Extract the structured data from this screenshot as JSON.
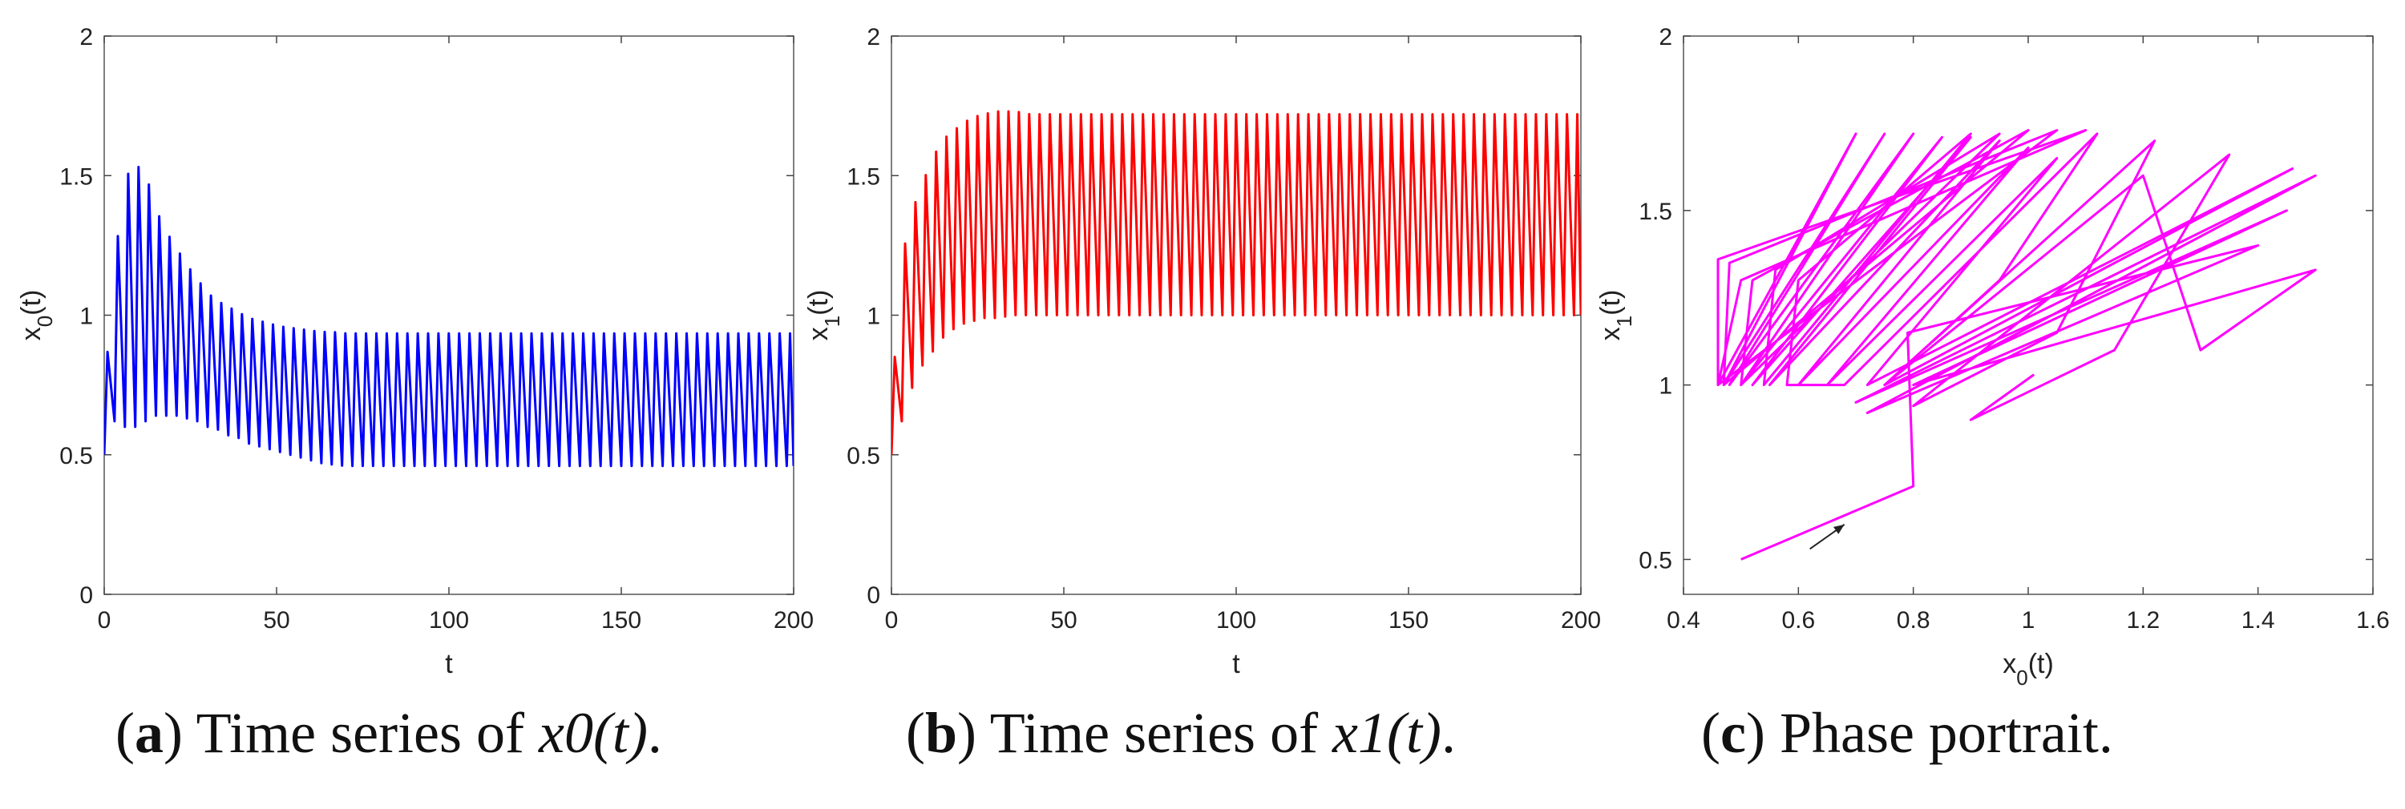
{
  "figure": {
    "captions": [
      {
        "letter": "a",
        "prefix": "Time series of ",
        "math": "x0(t)",
        "suffix": "."
      },
      {
        "letter": "b",
        "prefix": "Time series of ",
        "math": "x1(t)",
        "suffix": "."
      },
      {
        "letter": "c",
        "prefix": "Phase portrait.",
        "math": "",
        "suffix": ""
      }
    ]
  },
  "chart_data": [
    {
      "id": "a",
      "type": "line",
      "title": "",
      "xlabel": "t",
      "ylabel": "x0(t)",
      "xlim": [
        0,
        200
      ],
      "ylim": [
        0,
        2
      ],
      "xticks": [
        0,
        50,
        100,
        150,
        200
      ],
      "yticks": [
        0,
        0.5,
        1,
        1.5,
        2
      ],
      "grid": false,
      "legend": "none",
      "color": "#0000ff",
      "series": [
        {
          "period": 3.0,
          "x": [
            0,
            1.5,
            3,
            4.5,
            6,
            7.5,
            9,
            10.5,
            12,
            13.5,
            15,
            18,
            21,
            24,
            27,
            30,
            33,
            36,
            39,
            42,
            45,
            48,
            51,
            54,
            57,
            60,
            63,
            66,
            70,
            80,
            100,
            150,
            200
          ],
          "min": [
            0.5,
            0.64,
            0.62,
            0.6,
            0.6,
            0.6,
            0.6,
            0.6,
            0.62,
            0.64,
            0.64,
            0.64,
            0.64,
            0.63,
            0.62,
            0.6,
            0.59,
            0.57,
            0.56,
            0.54,
            0.53,
            0.52,
            0.51,
            0.5,
            0.49,
            0.48,
            0.47,
            0.465,
            0.46,
            0.46,
            0.46,
            0.46,
            0.46
          ],
          "max": [
            0.6,
            1.02,
            1.2,
            1.33,
            1.5,
            1.51,
            1.55,
            1.52,
            1.5,
            1.45,
            1.38,
            1.3,
            1.24,
            1.18,
            1.13,
            1.08,
            1.05,
            1.03,
            1.01,
            0.99,
            0.98,
            0.97,
            0.96,
            0.955,
            0.95,
            0.945,
            0.94,
            0.94,
            0.935,
            0.935,
            0.935,
            0.935,
            0.935
          ]
        }
      ]
    },
    {
      "id": "b",
      "type": "line",
      "title": "",
      "xlabel": "t",
      "ylabel": "x1(t)",
      "xlim": [
        0,
        200
      ],
      "ylim": [
        0,
        2
      ],
      "xticks": [
        0,
        50,
        100,
        150,
        200
      ],
      "yticks": [
        0,
        0.5,
        1,
        1.5,
        2
      ],
      "grid": false,
      "legend": "none",
      "color": "#ff0000",
      "series": [
        {
          "period": 3.0,
          "x": [
            0,
            1.5,
            3,
            4.5,
            6,
            7.5,
            9,
            10.5,
            12,
            13.5,
            15,
            18,
            21,
            24,
            27,
            30,
            33,
            36,
            40,
            50,
            60,
            100,
            150,
            200
          ],
          "min": [
            0.5,
            0.6,
            0.62,
            0.68,
            0.74,
            0.79,
            0.82,
            0.85,
            0.87,
            0.9,
            0.92,
            0.95,
            0.97,
            0.98,
            0.99,
            0.99,
            0.995,
            1.0,
            1.0,
            1.0,
            1.0,
            1.0,
            1.0,
            1.0
          ],
          "max": [
            0.55,
            1.02,
            1.18,
            1.3,
            1.36,
            1.43,
            1.47,
            1.52,
            1.56,
            1.6,
            1.63,
            1.66,
            1.69,
            1.71,
            1.72,
            1.73,
            1.73,
            1.73,
            1.72,
            1.72,
            1.72,
            1.72,
            1.72,
            1.72
          ]
        }
      ]
    },
    {
      "id": "c",
      "type": "line",
      "title": "",
      "xlabel": "x0(t)",
      "ylabel": "x1(t)",
      "xlim": [
        0.4,
        1.6
      ],
      "ylim": [
        0.4,
        2
      ],
      "xticks": [
        0.4,
        0.6,
        0.8,
        1,
        1.2,
        1.4,
        1.6
      ],
      "yticks": [
        0.5,
        1,
        1.5,
        2
      ],
      "grid": false,
      "legend": "none",
      "color": "#ff00ff",
      "annotation": {
        "type": "arrow",
        "from": [
          0.62,
          0.53
        ],
        "to": [
          0.68,
          0.6
        ]
      },
      "series": [
        {
          "name": "",
          "points": [
            [
              0.5,
              0.5
            ],
            [
              0.8,
              0.71
            ],
            [
              0.79,
              1.15
            ],
            [
              1.4,
              1.4
            ],
            [
              0.72,
              0.92
            ],
            [
              1.5,
              1.6
            ],
            [
              0.7,
              0.95
            ],
            [
              1.45,
              1.5
            ],
            [
              0.8,
              1.0
            ],
            [
              1.5,
              1.33
            ],
            [
              1.3,
              1.1
            ],
            [
              1.2,
              1.6
            ],
            [
              0.75,
              1.0
            ],
            [
              1.46,
              1.62
            ],
            [
              0.72,
              1.0
            ],
            [
              1.05,
              1.65
            ],
            [
              0.65,
              1.0
            ],
            [
              1.0,
              1.68
            ],
            [
              0.6,
              1.0
            ],
            [
              0.95,
              1.7
            ],
            [
              0.55,
              1.0
            ],
            [
              0.9,
              1.71
            ],
            [
              0.52,
              1.0
            ],
            [
              0.85,
              1.71
            ],
            [
              0.5,
              1.0
            ],
            [
              0.8,
              1.72
            ],
            [
              0.48,
              1.0
            ],
            [
              0.75,
              1.72
            ],
            [
              0.47,
              1.0
            ],
            [
              0.7,
              1.72
            ],
            [
              0.46,
              1.0
            ],
            [
              0.46,
              1.36
            ],
            [
              1.1,
              1.73
            ],
            [
              0.5,
              1.3
            ],
            [
              0.46,
              1.0
            ],
            [
              1.05,
              1.73
            ],
            [
              0.48,
              1.35
            ],
            [
              0.47,
              1.0
            ],
            [
              1.0,
              1.73
            ],
            [
              0.52,
              1.3
            ],
            [
              0.5,
              1.0
            ],
            [
              0.95,
              1.72
            ],
            [
              0.56,
              1.33
            ],
            [
              0.54,
              1.0
            ],
            [
              0.9,
              1.72
            ],
            [
              0.6,
              1.3
            ],
            [
              0.58,
              1.0
            ],
            [
              0.68,
              1.0
            ],
            [
              1.12,
              1.72
            ],
            [
              0.95,
              1.3
            ],
            [
              0.75,
              1.0
            ],
            [
              1.22,
              1.7
            ],
            [
              1.05,
              1.15
            ],
            [
              0.8,
              0.94
            ],
            [
              1.35,
              1.66
            ],
            [
              1.15,
              1.1
            ],
            [
              0.9,
              0.9
            ],
            [
              1.01,
              1.03
            ]
          ]
        }
      ]
    }
  ]
}
